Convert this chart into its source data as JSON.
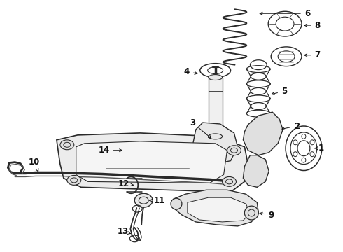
{
  "background_color": "#ffffff",
  "figure_width": 4.9,
  "figure_height": 3.6,
  "dpi": 100,
  "line_color": "#2a2a2a",
  "line_color_light": "#555555"
}
